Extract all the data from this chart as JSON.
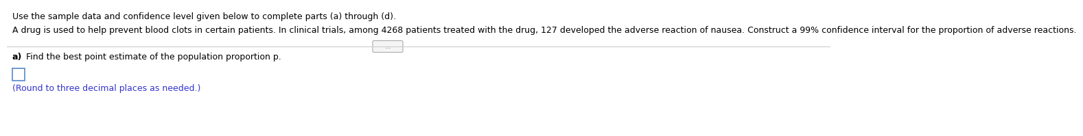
{
  "line1": "Use the sample data and confidence level given below to complete parts (a) through (d).",
  "line2": "A drug is used to help prevent blood clots in certain patients. In clinical trials, among 4268 patients treated with the drug, 127 developed the adverse reaction of nausea. Construct a 99% confidence interval for the proportion of adverse reactions.",
  "dots": "...",
  "part_a_bold": "a)",
  "part_a_text": " Find the best point estimate of the population proportion p.",
  "hint": "(Round to three decimal places as needed.)",
  "bg_color": "#ffffff",
  "text_color": "#000000",
  "hint_color": "#3333cc",
  "line_color": "#cccccc",
  "font_size_main": 9.0,
  "font_size_hint": 9.0,
  "font_size_dots": 6.5
}
